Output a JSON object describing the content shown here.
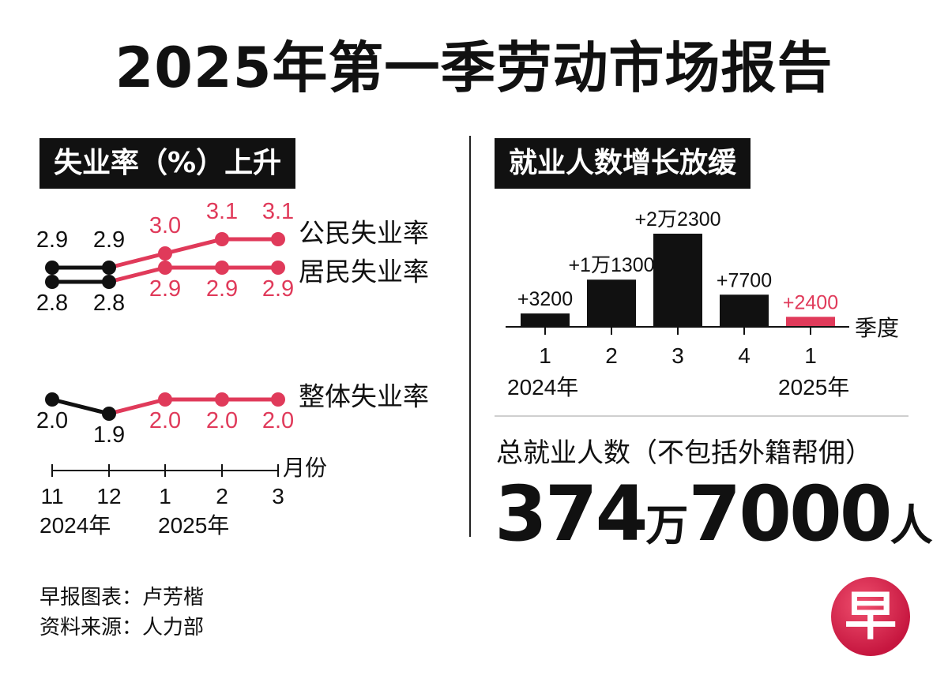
{
  "title": "2025年第一季劳动市场报告",
  "colors": {
    "accent": "#e03a5a",
    "dark": "#111111"
  },
  "left_panel": {
    "heading": "失业率（%）上升",
    "x_unit": "月份",
    "years": [
      "2024年",
      "2025年"
    ]
  },
  "right_panel": {
    "heading": "就业人数增长放缓",
    "x_unit": "季度",
    "years": [
      "2024年",
      "2025年"
    ]
  },
  "total": {
    "label": "总就业人数（不包括外籍帮佣）",
    "value_wan": "374",
    "wan": "万",
    "value_rest": "7000",
    "unit": "人"
  },
  "credits": {
    "line1": "早报图表：卢芳楷",
    "line2": "资料来源：人力部"
  },
  "logo_char": "早",
  "chart_data": [
    {
      "type": "line",
      "categories": [
        "11",
        "12",
        "1",
        "2",
        "3"
      ],
      "series": [
        {
          "name": "公民失业率",
          "values": [
            2.9,
            2.9,
            3.0,
            3.1,
            3.1
          ],
          "labels": [
            "2.9",
            "2.9",
            "3.0",
            "3.1",
            "3.1"
          ]
        },
        {
          "name": "居民失业率",
          "values": [
            2.8,
            2.8,
            2.9,
            2.9,
            2.9
          ],
          "labels": [
            "2.8",
            "2.8",
            "2.9",
            "2.9",
            "2.9"
          ]
        },
        {
          "name": "整体失业率",
          "values": [
            2.0,
            1.9,
            2.0,
            2.0,
            2.0
          ],
          "labels": [
            "2.0",
            "1.9",
            "2.0",
            "2.0",
            "2.0"
          ]
        }
      ],
      "highlight_from_index": 2
    },
    {
      "type": "bar",
      "categories": [
        "1",
        "2",
        "3",
        "4",
        "1"
      ],
      "values": [
        3200,
        11300,
        22300,
        7700,
        2400
      ],
      "labels": [
        "+3200",
        "+1万1300",
        "+2万2300",
        "+7700",
        "+2400"
      ],
      "highlight_index": 4
    }
  ]
}
